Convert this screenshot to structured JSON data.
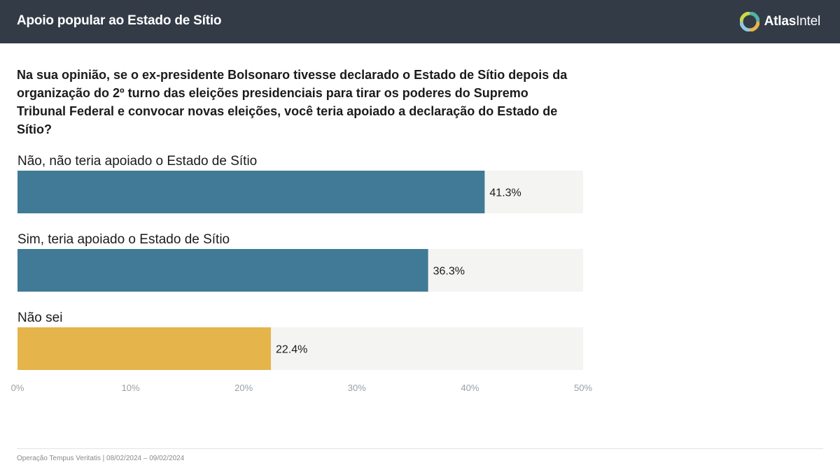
{
  "header": {
    "title": "Apoio popular ao Estado de Sítio",
    "brand_bold": "Atlas",
    "brand_regular": "Intel"
  },
  "question": "Na sua opinião, se o ex-presidente Bolsonaro tivesse declarado o Estado de Sítio depois da organização do 2º turno das eleições presidenciais para tirar os poderes do Supremo Tribunal Federal e convocar novas eleições, você teria apoiado a declaração do Estado de Sítio?",
  "chart_data": {
    "type": "bar",
    "orientation": "horizontal",
    "categories": [
      "Não, não teria apoiado o Estado de Sítio",
      "Sim, teria apoiado o Estado de Sítio",
      "Não sei"
    ],
    "values": [
      41.3,
      36.3,
      22.4
    ],
    "value_labels": [
      "41.3%",
      "36.3%",
      "22.4%"
    ],
    "colors": [
      "#417a96",
      "#417a96",
      "#e5b44b"
    ],
    "track_color": "#f4f4f3",
    "xlim": [
      0,
      50
    ],
    "xticks": [
      0,
      10,
      20,
      30,
      40,
      50
    ],
    "xtick_labels": [
      "0%",
      "10%",
      "20%",
      "30%",
      "40%",
      "50%"
    ],
    "grid": false
  },
  "footer": "Operação Tempus Veritatis | 08/02/2024 – 09/02/2024"
}
